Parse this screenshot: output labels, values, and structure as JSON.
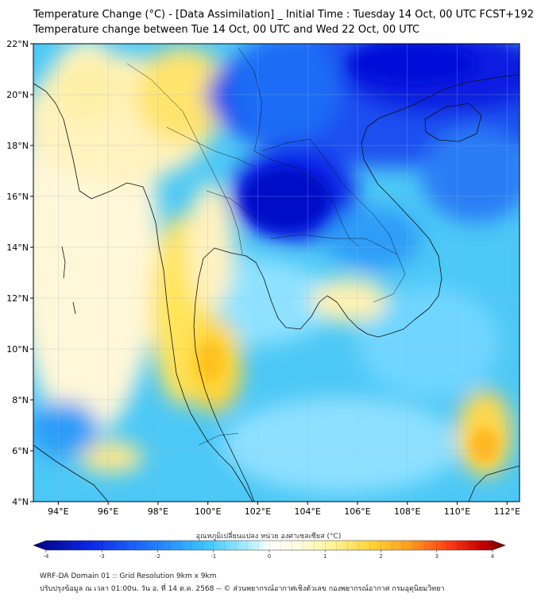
{
  "title": {
    "line1": "Temperature Change (°C) - [Data Assimilation] _ Initial Time : Tuesday 14 Oct, 00 UTC FCST+192",
    "line2": "Temperature change between Tue 14 Oct, 00 UTC and Wed 22 Oct, 00 UTC"
  },
  "map": {
    "lat_range": [
      4,
      22
    ],
    "lon_range": [
      93,
      112.5
    ],
    "lat_ticks": [
      {
        "value": 22,
        "label": "22°N"
      },
      {
        "value": 20,
        "label": "20°N"
      },
      {
        "value": 18,
        "label": "18°N"
      },
      {
        "value": 16,
        "label": "16°N"
      },
      {
        "value": 14,
        "label": "14°N"
      },
      {
        "value": 12,
        "label": "12°N"
      },
      {
        "value": 10,
        "label": "10°N"
      },
      {
        "value": 8,
        "label": "8°N"
      },
      {
        "value": 6,
        "label": "6°N"
      },
      {
        "value": 4,
        "label": "4°N"
      }
    ],
    "lon_ticks": [
      {
        "value": 94,
        "label": "94°E"
      },
      {
        "value": 96,
        "label": "96°E"
      },
      {
        "value": 98,
        "label": "98°E"
      },
      {
        "value": 100,
        "label": "100°E"
      },
      {
        "value": 102,
        "label": "102°E"
      },
      {
        "value": 104,
        "label": "104°E"
      },
      {
        "value": 106,
        "label": "106°E"
      },
      {
        "value": 108,
        "label": "108°E"
      },
      {
        "value": 110,
        "label": "110°E"
      },
      {
        "value": 112,
        "label": "112°E"
      }
    ]
  },
  "colorbar": {
    "label": "อุณหภูมิเปลี่ยนแปลง หน่วย องศาเซลเซียส (°C)",
    "min": -4,
    "max": 4,
    "ticks": [
      "-4",
      "-3",
      "-2",
      "-1",
      "0",
      "1",
      "2",
      "3",
      "4"
    ],
    "colors": [
      "#000080",
      "#0000c8",
      "#0a3cff",
      "#1e78ff",
      "#3cb4ff",
      "#64d2ff",
      "#a0e6ff",
      "#d2f5ff",
      "#ffffff",
      "#fffadc",
      "#fff5a0",
      "#ffe650",
      "#ffcd28",
      "#ffa01e",
      "#ff6414",
      "#e61e0a",
      "#b40000",
      "#780000"
    ]
  },
  "footer": {
    "line1": "WRF-DA Domain 01 :: Grid Resolution 9km x 9km",
    "line2": "ปรับปรุงข้อมูล ณ เวลา 01:00น. วัน อ. ที่ 14 ต.ค. 2568 -- © ส่วนพยากรณ์อากาศเชิงตัวเลข กองพยากรณ์อากาศ กรมอุตุนิยมวิทยา"
  }
}
